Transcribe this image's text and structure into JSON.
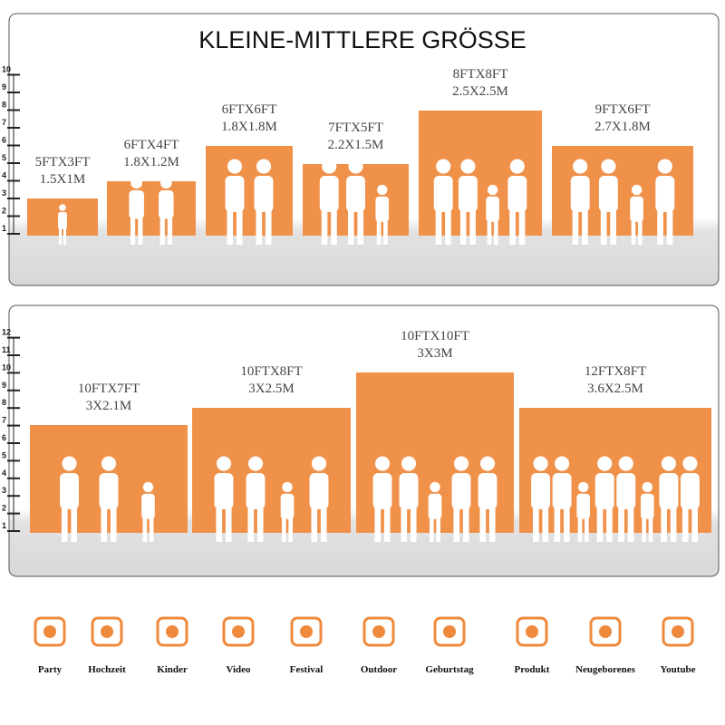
{
  "title": "KLEINE-MITTLERE GRÖSSE",
  "panels": [
    {
      "scale": [
        1,
        2,
        3,
        4,
        5,
        6,
        7,
        8,
        9,
        10
      ],
      "items": [
        [
          "5FTX3FT",
          "1.5X1M"
        ],
        [
          "6FTX4FT",
          "1.8X1.2M"
        ],
        [
          "6FTX6FT",
          "1.8X1.8M"
        ],
        [
          "7FTX5FT",
          "2.2X1.5M"
        ],
        [
          "8FTX8FT",
          "2.5X2.5M"
        ],
        [
          "9FTX6FT",
          "2.7X1.8M"
        ]
      ]
    },
    {
      "scale": [
        1,
        2,
        3,
        4,
        5,
        6,
        7,
        8,
        9,
        10,
        11,
        12
      ],
      "items": [
        [
          "10FTX7FT",
          "3X2.1M"
        ],
        [
          "10FTX8FT",
          "3X2.5M"
        ],
        [
          "10FTX10FT",
          "3X3M"
        ],
        [
          "12FTX8FT",
          "3.6X2.5M"
        ]
      ]
    }
  ],
  "uses": [
    "Party",
    "Hochzeit",
    "Kinder",
    "Video",
    "Festival",
    "Outdoor",
    "Geburtstag",
    "Produkt",
    "Neugeborenes",
    "Youtube"
  ]
}
